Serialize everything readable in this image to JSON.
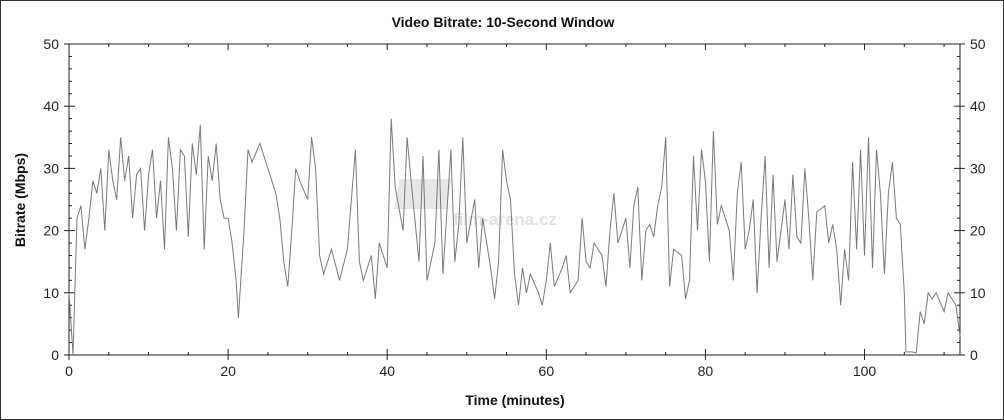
{
  "chart_data": {
    "type": "line",
    "title": "Video Bitrate: 10-Second Window",
    "xlabel": "Time (minutes)",
    "ylabel": "Bitrate (Mbps)",
    "xlim": [
      0,
      112
    ],
    "ylim": [
      0,
      50
    ],
    "x_ticks": [
      0,
      20,
      40,
      60,
      80,
      100
    ],
    "y_ticks": [
      0,
      10,
      20,
      30,
      40,
      50
    ],
    "y_axis_right": true,
    "grid": false,
    "line_color": "#7a7a7a",
    "watermark": "film-arena.cz",
    "x": [
      0,
      0.5,
      1,
      1.5,
      2,
      2.5,
      3,
      3.5,
      4,
      4.5,
      5,
      5.5,
      6,
      6.5,
      7,
      7.5,
      8,
      8.5,
      9,
      9.5,
      10,
      10.5,
      11,
      11.5,
      12,
      12.5,
      13,
      13.5,
      14,
      14.5,
      15,
      15.5,
      16,
      16.5,
      17,
      17.5,
      18,
      18.5,
      19,
      19.5,
      20,
      20.5,
      21,
      21.3,
      22,
      22.5,
      23,
      24,
      25,
      26,
      26.5,
      27,
      27.5,
      28,
      28.5,
      29,
      30,
      30.5,
      31,
      31.5,
      32,
      33,
      34,
      35,
      36,
      36.5,
      37,
      38,
      38.5,
      39,
      40,
      40.5,
      41,
      42,
      42.5,
      43,
      44,
      44.5,
      45,
      46,
      46.5,
      47,
      48,
      48.5,
      49,
      49.5,
      50,
      51,
      51.5,
      52,
      52.5,
      53,
      53.5,
      54,
      54.5,
      55,
      55.5,
      56,
      56.5,
      57,
      57.5,
      58,
      59,
      59.5,
      60,
      60.5,
      61,
      62,
      62.5,
      63,
      64,
      64.5,
      65,
      65.5,
      66,
      67,
      67.5,
      68,
      68.5,
      69,
      70,
      70.5,
      71,
      71.5,
      72,
      72.5,
      73,
      73.5,
      74,
      74.5,
      75,
      75.5,
      76,
      77,
      77.5,
      78,
      78.5,
      79,
      79.5,
      80,
      80.5,
      81,
      81.5,
      82,
      83,
      83.5,
      84,
      84.5,
      85,
      85.5,
      86,
      86.5,
      87,
      87.5,
      88,
      88.5,
      89,
      90,
      90.5,
      91,
      91.5,
      92,
      92.5,
      93,
      93.5,
      94,
      95,
      95.5,
      96,
      96.5,
      97,
      97.5,
      98,
      98.5,
      99,
      99.5,
      100,
      100.5,
      101,
      101.5,
      102,
      102.5,
      103,
      103.5,
      104,
      104.5,
      105,
      105.2,
      106,
      106.5,
      107,
      107.5,
      108,
      108.5,
      109,
      110,
      110.5,
      111,
      111.5,
      112
    ],
    "y": [
      10,
      0,
      22,
      24,
      17,
      22,
      28,
      26,
      30,
      20,
      33,
      28,
      25,
      35,
      28,
      32,
      22,
      29,
      30,
      20,
      29,
      33,
      22,
      28,
      17,
      35,
      30,
      20,
      33,
      32,
      19,
      34,
      29,
      37,
      17,
      32,
      28,
      34,
      25,
      22,
      22,
      18,
      12,
      6,
      20,
      33,
      31,
      34,
      30,
      26,
      22,
      15,
      11,
      20,
      30,
      28,
      25,
      35,
      30,
      16,
      13,
      17,
      12,
      17,
      33,
      15,
      12,
      16,
      9,
      18,
      14,
      38,
      27,
      20,
      35,
      28,
      15,
      32,
      12,
      18,
      33,
      13,
      33,
      15,
      21,
      35,
      18,
      25,
      14,
      22,
      18,
      14,
      9,
      15,
      33,
      28,
      25,
      13,
      8,
      14,
      10,
      13,
      10,
      8,
      12,
      18,
      11,
      14,
      16,
      10,
      12,
      22,
      15,
      14,
      18,
      16,
      11,
      20,
      26,
      18,
      22,
      14,
      24,
      27,
      12,
      20,
      21,
      19,
      24,
      27,
      35,
      11,
      17,
      16,
      9,
      12,
      32,
      20,
      33,
      28,
      15,
      36,
      21,
      24,
      20,
      12,
      26,
      31,
      17,
      20,
      25,
      10,
      22,
      32,
      14,
      29,
      15,
      25,
      17,
      29,
      19,
      18,
      30,
      22,
      12,
      23,
      24,
      18,
      21,
      17,
      8,
      17,
      12,
      31,
      17,
      33,
      16,
      35,
      14,
      33,
      26,
      13,
      26,
      31,
      22,
      21,
      10,
      0.5,
      0.5,
      0.3,
      7,
      5,
      10,
      9,
      10,
      7,
      10,
      9,
      8,
      3
    ]
  }
}
